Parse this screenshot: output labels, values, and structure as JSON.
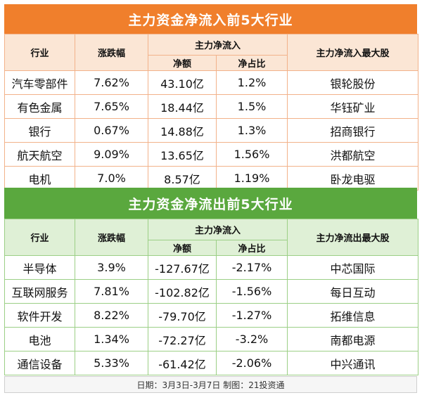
{
  "inflow": {
    "title": "主力资金净流入前5大行业",
    "headers": {
      "industry": "行业",
      "change": "涨跌幅",
      "main_group": "主力净流入",
      "net_amount": "净额",
      "net_ratio": "净占比",
      "top_stock": "主力净流入最大股"
    },
    "rows": [
      {
        "industry": "汽车零部件",
        "change": "7.62%",
        "net_amount": "43.10亿",
        "net_ratio": "1.2%",
        "top_stock": "银轮股份"
      },
      {
        "industry": "有色金属",
        "change": "7.65%",
        "net_amount": "18.44亿",
        "net_ratio": "1.5%",
        "top_stock": "华钰矿业"
      },
      {
        "industry": "银行",
        "change": "0.67%",
        "net_amount": "14.88亿",
        "net_ratio": "1.3%",
        "top_stock": "招商银行"
      },
      {
        "industry": "航天航空",
        "change": "9.09%",
        "net_amount": "13.65亿",
        "net_ratio": "1.56%",
        "top_stock": "洪都航空"
      },
      {
        "industry": "电机",
        "change": "7.0%",
        "net_amount": "8.57亿",
        "net_ratio": "1.19%",
        "top_stock": "卧龙电驱"
      }
    ]
  },
  "outflow": {
    "title": "主力资金净流出前5大行业",
    "headers": {
      "industry": "行业",
      "change": "涨跌幅",
      "main_group": "主力净流入",
      "net_amount": "净额",
      "net_ratio": "净占比",
      "top_stock": "主力净流出最大股"
    },
    "rows": [
      {
        "industry": "半导体",
        "change": "3.9%",
        "net_amount": "-127.67亿",
        "net_ratio": "-2.17%",
        "top_stock": "中芯国际"
      },
      {
        "industry": "互联网服务",
        "change": "7.81%",
        "net_amount": "-102.82亿",
        "net_ratio": "-1.56%",
        "top_stock": "每日互动"
      },
      {
        "industry": "软件开发",
        "change": "8.22%",
        "net_amount": "-79.70亿",
        "net_ratio": "-1.27%",
        "top_stock": "拓维信息"
      },
      {
        "industry": "电池",
        "change": "1.34%",
        "net_amount": "-72.27亿",
        "net_ratio": "-3.2%",
        "top_stock": "南都电源"
      },
      {
        "industry": "通信设备",
        "change": "5.33%",
        "net_amount": "-61.42亿",
        "net_ratio": "-2.06%",
        "top_stock": "中兴通讯"
      }
    ]
  },
  "footer": "日期：3月3日-3月7日 制图：21投资通",
  "colors": {
    "inflow_banner": "#f07f2c",
    "outflow_banner": "#5aa83e"
  }
}
